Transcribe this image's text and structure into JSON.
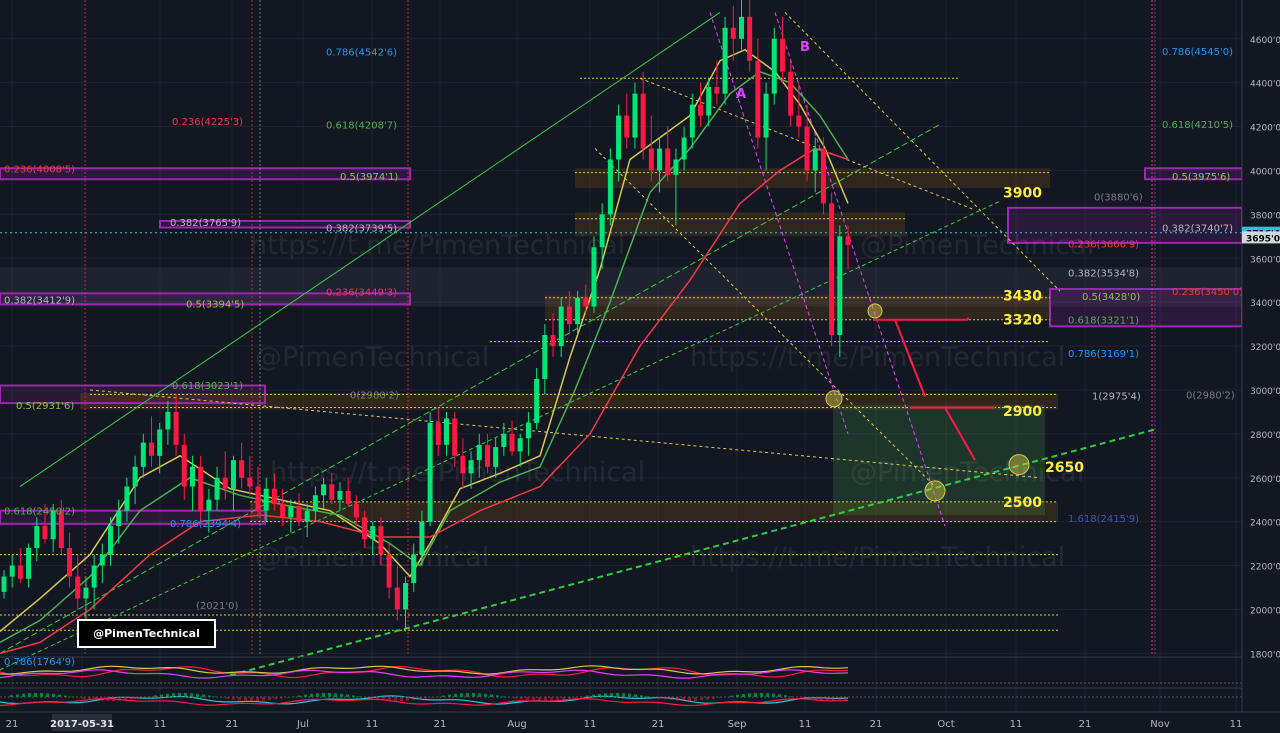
{
  "watermark": {
    "text1": "https://t.me/PimenTechnical",
    "text2": "@PimenTechnical",
    "badge": "@PimenTechnical"
  },
  "chart_data": {
    "type": "candlestick",
    "title": "",
    "y_axis": {
      "side": "right",
      "ylim": [
        1700,
        4650
      ],
      "ticks": [
        1800,
        2000,
        2200,
        2400,
        2600,
        2800,
        3000,
        3200,
        3400,
        3600,
        3800,
        4000,
        4200,
        4400,
        4600
      ],
      "tick_labels": [
        "1800'0",
        "2000'0",
        "2200'0",
        "2400'0",
        "2600'0",
        "2800'0",
        "3000'0",
        "3200'0",
        "3400'0",
        "3600'0",
        "3800'0",
        "4000'0",
        "4200'0",
        "4400'0",
        "4600'0"
      ],
      "price_tags": [
        {
          "label": "3716'4",
          "value": 3716.4,
          "color": "#26c6da"
        },
        {
          "label": "3695'0",
          "value": 3695.0,
          "color": "#cfd8dc"
        }
      ]
    },
    "x_axis": {
      "ticks": [
        "21",
        "2017-05-31",
        "11",
        "21",
        "Jul",
        "11",
        "21",
        "Aug",
        "11",
        "21",
        "Sep",
        "11",
        "21",
        "Oct",
        "11",
        "21",
        "Nov",
        "11"
      ]
    },
    "candles_ohlc": [
      [
        2080,
        2180,
        2050,
        2150
      ],
      [
        2150,
        2250,
        2100,
        2200
      ],
      [
        2200,
        2280,
        2120,
        2140
      ],
      [
        2140,
        2300,
        2100,
        2280
      ],
      [
        2280,
        2420,
        2220,
        2380
      ],
      [
        2380,
        2480,
        2300,
        2320
      ],
      [
        2320,
        2480,
        2260,
        2450
      ],
      [
        2450,
        2500,
        2250,
        2280
      ],
      [
        2280,
        2350,
        2100,
        2150
      ],
      [
        2150,
        2250,
        2000,
        2050
      ],
      [
        2050,
        2150,
        1950,
        2100
      ],
      [
        2100,
        2250,
        2000,
        2200
      ],
      [
        2200,
        2300,
        2120,
        2250
      ],
      [
        2250,
        2420,
        2200,
        2380
      ],
      [
        2380,
        2500,
        2300,
        2450
      ],
      [
        2450,
        2600,
        2400,
        2560
      ],
      [
        2560,
        2700,
        2480,
        2650
      ],
      [
        2650,
        2800,
        2600,
        2760
      ],
      [
        2760,
        2880,
        2650,
        2700
      ],
      [
        2700,
        2850,
        2620,
        2820
      ],
      [
        2820,
        2950,
        2750,
        2900
      ],
      [
        2900,
        2980,
        2700,
        2750
      ],
      [
        2750,
        2800,
        2500,
        2560
      ],
      [
        2560,
        2700,
        2450,
        2650
      ],
      [
        2650,
        2700,
        2400,
        2450
      ],
      [
        2450,
        2550,
        2350,
        2500
      ],
      [
        2500,
        2650,
        2450,
        2600
      ],
      [
        2600,
        2720,
        2500,
        2550
      ],
      [
        2550,
        2700,
        2450,
        2680
      ],
      [
        2680,
        2760,
        2550,
        2600
      ],
      [
        2600,
        2700,
        2520,
        2560
      ],
      [
        2560,
        2650,
        2420,
        2450
      ],
      [
        2450,
        2600,
        2400,
        2550
      ],
      [
        2550,
        2620,
        2450,
        2480
      ],
      [
        2480,
        2550,
        2380,
        2420
      ],
      [
        2420,
        2500,
        2350,
        2470
      ],
      [
        2470,
        2530,
        2380,
        2400
      ],
      [
        2400,
        2480,
        2330,
        2450
      ],
      [
        2450,
        2560,
        2400,
        2520
      ],
      [
        2520,
        2600,
        2460,
        2570
      ],
      [
        2570,
        2620,
        2480,
        2500
      ],
      [
        2500,
        2580,
        2450,
        2540
      ],
      [
        2540,
        2600,
        2470,
        2480
      ],
      [
        2480,
        2520,
        2380,
        2420
      ],
      [
        2420,
        2450,
        2280,
        2320
      ],
      [
        2320,
        2400,
        2250,
        2380
      ],
      [
        2380,
        2420,
        2200,
        2250
      ],
      [
        2250,
        2300,
        2050,
        2100
      ],
      [
        2100,
        2200,
        1950,
        2000
      ],
      [
        2000,
        2150,
        1900,
        2120
      ],
      [
        2120,
        2300,
        2080,
        2250
      ],
      [
        2250,
        2450,
        2200,
        2400
      ],
      [
        2400,
        2900,
        2380,
        2850
      ],
      [
        2850,
        2920,
        2700,
        2750
      ],
      [
        2750,
        2900,
        2700,
        2870
      ],
      [
        2870,
        2900,
        2650,
        2700
      ],
      [
        2700,
        2780,
        2550,
        2620
      ],
      [
        2620,
        2720,
        2550,
        2680
      ],
      [
        2680,
        2800,
        2600,
        2750
      ],
      [
        2750,
        2800,
        2620,
        2650
      ],
      [
        2650,
        2780,
        2600,
        2740
      ],
      [
        2740,
        2850,
        2700,
        2800
      ],
      [
        2800,
        2860,
        2700,
        2720
      ],
      [
        2720,
        2800,
        2650,
        2780
      ],
      [
        2780,
        2900,
        2700,
        2850
      ],
      [
        2850,
        3100,
        2820,
        3050
      ],
      [
        3050,
        3300,
        2980,
        3250
      ],
      [
        3250,
        3350,
        3150,
        3200
      ],
      [
        3200,
        3420,
        3150,
        3380
      ],
      [
        3380,
        3450,
        3250,
        3300
      ],
      [
        3300,
        3450,
        3250,
        3420
      ],
      [
        3420,
        3480,
        3350,
        3380
      ],
      [
        3380,
        3700,
        3350,
        3650
      ],
      [
        3650,
        3850,
        3550,
        3800
      ],
      [
        3800,
        4100,
        3750,
        4050
      ],
      [
        4050,
        4300,
        3950,
        4250
      ],
      [
        4250,
        4350,
        4100,
        4150
      ],
      [
        4150,
        4400,
        4100,
        4350
      ],
      [
        4350,
        4450,
        4050,
        4100
      ],
      [
        4100,
        4250,
        3950,
        4000
      ],
      [
        4000,
        4150,
        3900,
        4100
      ],
      [
        4100,
        4200,
        3950,
        3980
      ],
      [
        3980,
        4100,
        3750,
        4050
      ],
      [
        4050,
        4200,
        4000,
        4150
      ],
      [
        4150,
        4350,
        4100,
        4300
      ],
      [
        4300,
        4400,
        4200,
        4250
      ],
      [
        4250,
        4420,
        4200,
        4380
      ],
      [
        4380,
        4500,
        4300,
        4350
      ],
      [
        4350,
        4700,
        4300,
        4650
      ],
      [
        4650,
        4750,
        4500,
        4600
      ],
      [
        4600,
        4800,
        4550,
        4700
      ],
      [
        4700,
        4780,
        4450,
        4500
      ],
      [
        4500,
        4600,
        4100,
        4150
      ],
      [
        4150,
        4400,
        4000,
        4350
      ],
      [
        4350,
        4650,
        4300,
        4600
      ],
      [
        4600,
        4700,
        4400,
        4450
      ],
      [
        4450,
        4500,
        4200,
        4250
      ],
      [
        4250,
        4400,
        4150,
        4200
      ],
      [
        4200,
        4300,
        3950,
        4000
      ],
      [
        4000,
        4150,
        3900,
        4100
      ],
      [
        4100,
        4150,
        3800,
        3850
      ],
      [
        3850,
        3900,
        3200,
        3250
      ],
      [
        3250,
        3750,
        3150,
        3700
      ],
      [
        3700,
        3750,
        3550,
        3660
      ]
    ],
    "fib_levels": [
      {
        "label": "0.786(4542'6)",
        "value": 4542.6,
        "color": "#2196f3"
      },
      {
        "label": "0.236(4225'3)",
        "value": 4225.3,
        "color": "#f23645"
      },
      {
        "label": "0.618(4208'7)",
        "value": 4208.7,
        "color": "#4caf50"
      },
      {
        "label": "0.236(4008'5)",
        "value": 4008.5,
        "color": "#f23645"
      },
      {
        "label": "0.5(3974'1)",
        "value": 3974.1,
        "color": "#8bc34a"
      },
      {
        "label": "0.382(3765'9)",
        "value": 3765.9,
        "color": "#b2b5be"
      },
      {
        "label": "0.382(3739'5)",
        "value": 3739.5,
        "color": "#b2b5be"
      },
      {
        "label": "0.236(3449'3)",
        "value": 3449.3,
        "color": "#f23645"
      },
      {
        "label": "0.382(3412'9)",
        "value": 3412.9,
        "color": "#b2b5be"
      },
      {
        "label": "0.5(3394'5)",
        "value": 3394.5,
        "color": "#8bc34a"
      },
      {
        "label": "0.618(3023'1)",
        "value": 3023.1,
        "color": "#4caf50"
      },
      {
        "label": "0(2980'2)",
        "value": 2980.2,
        "color": "#787b86"
      },
      {
        "label": "0.5(2931'6)",
        "value": 2931.6,
        "color": "#8bc34a"
      },
      {
        "label": "0.618(2450'2)",
        "value": 2450.2,
        "color": "#4caf50"
      },
      {
        "label": "0.786(2394'4)",
        "value": 2394.4,
        "color": "#2196f3"
      },
      {
        "label": "0.786(1764'9)",
        "value": 1764.9,
        "color": "#2196f3"
      },
      {
        "label": "(2021'0)",
        "value": 2021.0,
        "color": "#787b86"
      },
      {
        "label": "0.786(4545'0)",
        "value": 4545.0,
        "color": "#2196f3"
      },
      {
        "label": "0.618(4210'5)",
        "value": 4210.5,
        "color": "#4caf50"
      },
      {
        "label": "0.5(3975'6)",
        "value": 3975.6,
        "color": "#8bc34a"
      },
      {
        "label": "0(3880'6)",
        "value": 3880.6,
        "color": "#787b86"
      },
      {
        "label": "0.382(3740'7)",
        "value": 3740.7,
        "color": "#b2b5be"
      },
      {
        "label": "0.236(3666'9)",
        "value": 3666.9,
        "color": "#f23645"
      },
      {
        "label": "0.382(3534'8)",
        "value": 3534.8,
        "color": "#b2b5be"
      },
      {
        "label": "0.5(3428'0)",
        "value": 3428.0,
        "color": "#8bc34a"
      },
      {
        "label": "0.236(3450'0)",
        "value": 3450.0,
        "color": "#f23645"
      },
      {
        "label": "0.618(3321'1)",
        "value": 3321.1,
        "color": "#4caf50"
      },
      {
        "label": "0.786(3169'1)",
        "value": 3169.1,
        "color": "#2196f3"
      },
      {
        "label": "1(2975'4)",
        "value": 2975.4,
        "color": "#b2b5be"
      },
      {
        "label": "0(2980'2)",
        "value": 2980.2,
        "color": "#787b86"
      },
      {
        "label": "1.618(2415'9)",
        "value": 2415.9,
        "color": "#3f51b5"
      }
    ],
    "annotations": {
      "levels": [
        "3900",
        "3430",
        "3320",
        "2900",
        "2650",
        "2500"
      ],
      "points": [
        "A",
        "B"
      ]
    }
  }
}
